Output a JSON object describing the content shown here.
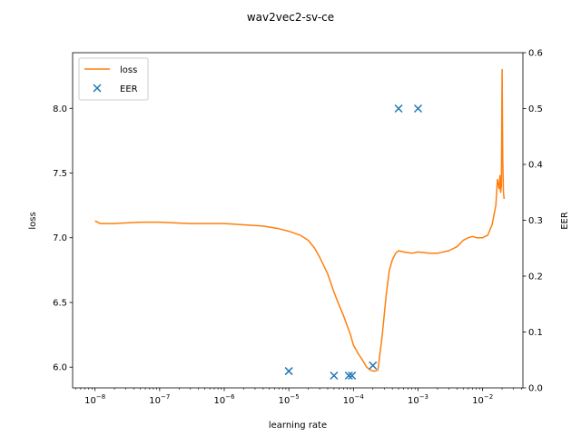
{
  "chart_data": {
    "type": "line",
    "title": "wav2vec2-sv-ce",
    "xlabel": "learning rate",
    "ylabel_left": "loss",
    "ylabel_right": "EER",
    "x_scale": "log",
    "xlim": [
      4.5e-09,
      0.042
    ],
    "ylim_left": [
      5.84,
      8.43
    ],
    "ylim_right": [
      0.0,
      0.6
    ],
    "x_ticks": [
      {
        "value": 1e-08,
        "base": "10",
        "exp": "−8"
      },
      {
        "value": 1e-07,
        "base": "10",
        "exp": "−7"
      },
      {
        "value": 1e-06,
        "base": "10",
        "exp": "−6"
      },
      {
        "value": 1e-05,
        "base": "10",
        "exp": "−5"
      },
      {
        "value": 0.0001,
        "base": "10",
        "exp": "−4"
      },
      {
        "value": 0.001,
        "base": "10",
        "exp": "−3"
      },
      {
        "value": 0.01,
        "base": "10",
        "exp": "−2"
      }
    ],
    "y_ticks_left": [
      "6.0",
      "6.5",
      "7.0",
      "7.5",
      "8.0"
    ],
    "y_ticks_right": [
      "0.0",
      "0.1",
      "0.2",
      "0.3",
      "0.4",
      "0.5",
      "0.6"
    ],
    "legend_position": "top-left",
    "legend": [
      "loss",
      "EER"
    ],
    "series": [
      {
        "name": "loss",
        "axis": "left",
        "kind": "line",
        "color": "#ff7f0e",
        "x": [
          1e-08,
          1.2e-08,
          2e-08,
          5e-08,
          1e-07,
          3e-07,
          1e-06,
          2e-06,
          4e-06,
          7e-06,
          1e-05,
          1.5e-05,
          2e-05,
          2.5e-05,
          3e-05,
          4e-05,
          5e-05,
          6e-05,
          7e-05,
          8e-05,
          9e-05,
          0.0001,
          0.00012,
          0.00014,
          0.00016,
          0.00018,
          0.0002,
          0.00022,
          0.00024,
          0.00025,
          0.00028,
          0.00032,
          0.00036,
          0.0004,
          0.00045,
          0.0005,
          0.0006,
          0.0008,
          0.001,
          0.0015,
          0.002,
          0.003,
          0.004,
          0.005,
          0.006,
          0.007,
          0.008,
          0.01,
          0.012,
          0.014,
          0.016,
          0.017,
          0.018,
          0.0185,
          0.019,
          0.0195,
          0.02,
          0.0205,
          0.021,
          0.0215
        ],
        "y": [
          7.13,
          7.11,
          7.11,
          7.12,
          7.12,
          7.11,
          7.11,
          7.1,
          7.09,
          7.07,
          7.05,
          7.02,
          6.98,
          6.92,
          6.85,
          6.72,
          6.58,
          6.48,
          6.4,
          6.32,
          6.25,
          6.17,
          6.1,
          6.05,
          6.0,
          5.98,
          5.97,
          5.97,
          5.98,
          6.05,
          6.25,
          6.55,
          6.75,
          6.83,
          6.88,
          6.9,
          6.89,
          6.88,
          6.89,
          6.88,
          6.88,
          6.9,
          6.93,
          6.98,
          7.0,
          7.01,
          7.0,
          7.0,
          7.02,
          7.1,
          7.25,
          7.45,
          7.38,
          7.48,
          7.35,
          7.4,
          8.3,
          7.6,
          7.35,
          7.3
        ]
      },
      {
        "name": "EER",
        "axis": "right",
        "kind": "scatter",
        "marker": "x",
        "color": "#1f77b4",
        "x": [
          1e-05,
          5e-05,
          8.5e-05,
          9.5e-05,
          0.0002,
          0.0005,
          0.001
        ],
        "y": [
          0.03,
          0.022,
          0.022,
          0.022,
          0.04,
          0.5,
          0.5
        ]
      }
    ]
  }
}
